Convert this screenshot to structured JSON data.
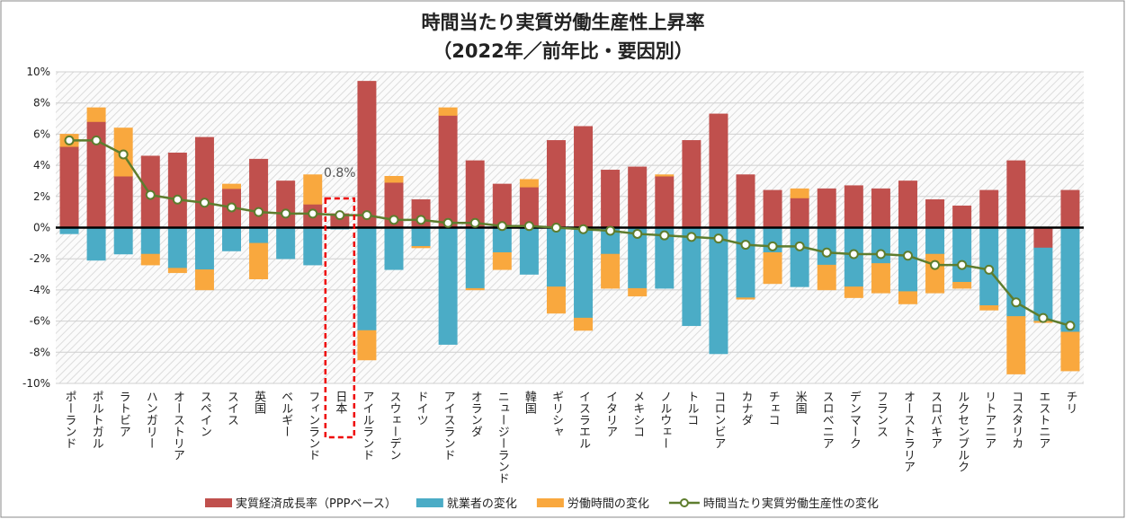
{
  "chart_data": {
    "type": "bar",
    "title": "時間当たり実質労働生産性上昇率",
    "subtitle": "（2022年／前年比・要因別）",
    "categories": [
      "ポーランド",
      "ポルトガル",
      "ラトビア",
      "ハンガリー",
      "オーストリア",
      "スペイン",
      "スイス",
      "英国",
      "ベルギー",
      "フィンランド",
      "日本",
      "アイルランド",
      "スウェーデン",
      "ドイツ",
      "アイスランド",
      "オランダ",
      "ニュージーランド",
      "韓国",
      "ギリシャ",
      "イスラエル",
      "イタリア",
      "メキシコ",
      "ノルウェー",
      "トルコ",
      "コロンビア",
      "カナダ",
      "チェコ",
      "米国",
      "スロベニア",
      "デンマーク",
      "フランス",
      "オーストラリア",
      "スロバキア",
      "ルクセンブルク",
      "リトアニア",
      "コスタリカ",
      "エストニア",
      "チリ"
    ],
    "series": [
      {
        "name": "実質経済成長率（PPPベース）",
        "color": "#c0504d",
        "values": [
          5.2,
          6.8,
          3.3,
          4.6,
          4.8,
          5.8,
          2.5,
          4.4,
          3.0,
          1.5,
          0.9,
          9.4,
          2.9,
          1.8,
          7.2,
          4.3,
          2.8,
          2.6,
          5.6,
          6.5,
          3.7,
          3.9,
          3.3,
          5.6,
          7.3,
          3.4,
          2.4,
          1.9,
          2.5,
          2.7,
          2.5,
          3.0,
          1.8,
          1.4,
          2.4,
          4.3,
          -1.3,
          2.4
        ]
      },
      {
        "name": "就業者の変化",
        "color": "#4bacc6",
        "values": [
          -0.4,
          -2.1,
          -1.7,
          -1.7,
          -2.6,
          -2.7,
          -1.5,
          -1.0,
          -2.0,
          -2.4,
          -0.1,
          -6.6,
          -2.7,
          -1.2,
          -7.5,
          -3.9,
          -1.6,
          -3.0,
          -3.8,
          -5.8,
          -1.7,
          -3.9,
          -3.9,
          -6.3,
          -8.1,
          -4.5,
          -1.6,
          -3.8,
          -2.4,
          -3.8,
          -2.3,
          -4.1,
          -1.7,
          -3.5,
          -5.0,
          -5.7,
          -4.7,
          -6.7
        ]
      },
      {
        "name": "労働時間の変化",
        "color": "#f9a83e",
        "values": [
          0.8,
          0.9,
          3.1,
          -0.7,
          -0.3,
          -1.3,
          0.3,
          -2.3,
          0,
          1.9,
          0,
          -1.9,
          0.4,
          -0.1,
          0.5,
          -0.1,
          -1.1,
          0.5,
          -1.7,
          -0.8,
          -2.2,
          -0.5,
          0.1,
          0,
          0,
          -0.1,
          -2.0,
          0.6,
          -1.6,
          -0.7,
          -1.9,
          -0.8,
          -2.5,
          -0.4,
          -0.3,
          -3.7,
          -0.1,
          -2.5
        ]
      },
      {
        "name": "時間当たり実質労働生産性の変化",
        "type": "line",
        "color": "#5e7d2e",
        "values": [
          5.6,
          5.6,
          4.7,
          2.1,
          1.8,
          1.6,
          1.3,
          1.0,
          0.9,
          0.9,
          0.8,
          0.8,
          0.5,
          0.5,
          0.3,
          0.3,
          0.1,
          0.1,
          0.0,
          -0.1,
          -0.2,
          -0.4,
          -0.5,
          -0.6,
          -0.7,
          -1.1,
          -1.2,
          -1.2,
          -1.6,
          -1.7,
          -1.7,
          -1.8,
          -2.4,
          -2.4,
          -2.7,
          -4.8,
          -5.8,
          -6.3
        ]
      }
    ],
    "annotations": [
      {
        "text": "0.8%",
        "category": "日本"
      }
    ],
    "ylim": [
      -10,
      10
    ],
    "yticks": [
      {
        "value": -10,
        "label": "-10%"
      },
      {
        "value": -8,
        "label": "-8%"
      },
      {
        "value": -6,
        "label": "-6%"
      },
      {
        "value": -4,
        "label": "-4%"
      },
      {
        "value": -2,
        "label": "-2%"
      },
      {
        "value": 0,
        "label": "0%"
      },
      {
        "value": 2,
        "label": "2%"
      },
      {
        "value": 4,
        "label": "4%"
      },
      {
        "value": 6,
        "label": "6%"
      },
      {
        "value": 8,
        "label": "8%"
      },
      {
        "value": 10,
        "label": "10%"
      }
    ],
    "grid": true,
    "legend": "bottom"
  }
}
